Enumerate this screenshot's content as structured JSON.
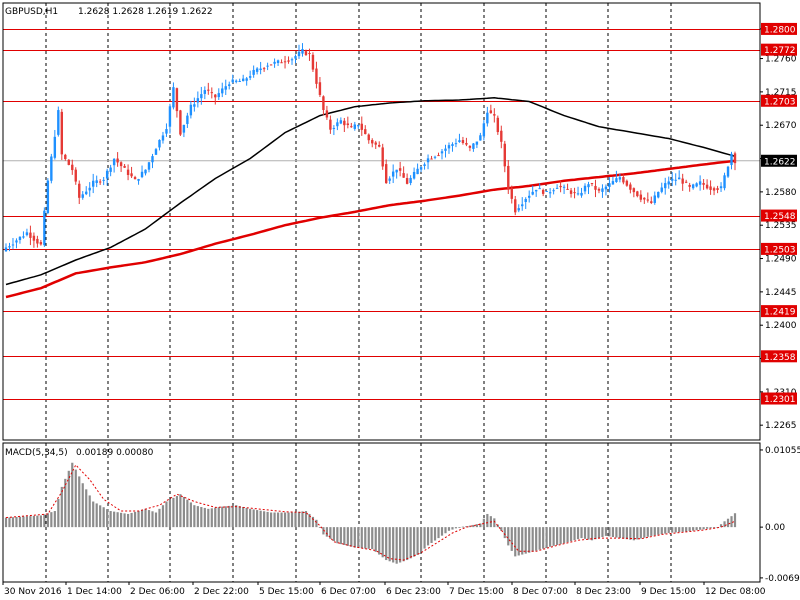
{
  "header": {
    "title": "GBPUSD,H1",
    "ohlc": "1.2628 1.2628 1.2619 1.2622"
  },
  "macd_header": {
    "title": "MACD(5,34,5)",
    "values": "0.00189 0.00080"
  },
  "colors": {
    "bull": "#1E90FF",
    "bear": "#E53935",
    "level": "#E00000",
    "ma_red": "#E00000",
    "ma_black": "#000000",
    "hist": "#8C8C8C",
    "signal": "#E00000",
    "grid": "#000000"
  },
  "chart_data": [
    {
      "type": "candlestick",
      "title": "GBPUSD,H1",
      "ylim": [
        1.2245,
        1.2835
      ],
      "price_ticks": [
        "1.2800",
        "1.2760",
        "1.2715",
        "1.2670",
        "1.2625",
        "1.2580",
        "1.2535",
        "1.2490",
        "1.2445",
        "1.2400",
        "1.2355",
        "1.2310",
        "1.2265"
      ],
      "levels": [
        "1.2800",
        "1.2772",
        "1.2703",
        "1.2548",
        "1.2503",
        "1.2419",
        "1.2358",
        "1.2301"
      ],
      "current_price": "1.2622",
      "x_labels": [
        "30 Nov 2016",
        "1 Dec 14:00",
        "2 Dec 06:00",
        "2 Dec 22:00",
        "5 Dec 15:00",
        "6 Dec 07:00",
        "6 Dec 23:00",
        "7 Dec 15:00",
        "8 Dec 07:00",
        "8 Dec 23:00",
        "9 Dec 15:00",
        "12 Dec 08:00"
      ],
      "anchors": [
        [
          0,
          1.2505
        ],
        [
          6,
          1.2525
        ],
        [
          10,
          1.2508
        ],
        [
          12,
          1.2595
        ],
        [
          15,
          1.2688
        ],
        [
          16,
          1.263
        ],
        [
          19,
          1.261
        ],
        [
          21,
          1.2572
        ],
        [
          25,
          1.2592
        ],
        [
          28,
          1.2598
        ],
        [
          31,
          1.2625
        ],
        [
          34,
          1.261
        ],
        [
          37,
          1.2595
        ],
        [
          40,
          1.261
        ],
        [
          43,
          1.264
        ],
        [
          46,
          1.2668
        ],
        [
          48,
          1.272
        ],
        [
          50,
          1.266
        ],
        [
          53,
          1.2695
        ],
        [
          57,
          1.2718
        ],
        [
          60,
          1.2708
        ],
        [
          64,
          1.2728
        ],
        [
          68,
          1.273
        ],
        [
          71,
          1.2742
        ],
        [
          75,
          1.2752
        ],
        [
          78,
          1.2755
        ],
        [
          82,
          1.276
        ],
        [
          85,
          1.277
        ],
        [
          87,
          1.2765
        ],
        [
          89,
          1.2728
        ],
        [
          91,
          1.269
        ],
        [
          93,
          1.2665
        ],
        [
          96,
          1.2676
        ],
        [
          99,
          1.2665
        ],
        [
          101,
          1.2672
        ],
        [
          104,
          1.265
        ],
        [
          107,
          1.264
        ],
        [
          109,
          1.2595
        ],
        [
          112,
          1.2612
        ],
        [
          115,
          1.2592
        ],
        [
          118,
          1.261
        ],
        [
          121,
          1.2625
        ],
        [
          124,
          1.2632
        ],
        [
          127,
          1.2642
        ],
        [
          130,
          1.265
        ],
        [
          133,
          1.2638
        ],
        [
          136,
          1.2655
        ],
        [
          138,
          1.269
        ],
        [
          140,
          1.268
        ],
        [
          142,
          1.2645
        ],
        [
          144,
          1.2585
        ],
        [
          146,
          1.2555
        ],
        [
          149,
          1.2572
        ],
        [
          152,
          1.2585
        ],
        [
          155,
          1.2578
        ],
        [
          158,
          1.2588
        ],
        [
          161,
          1.2582
        ],
        [
          164,
          1.2575
        ],
        [
          167,
          1.2592
        ],
        [
          170,
          1.258
        ],
        [
          173,
          1.259
        ],
        [
          176,
          1.26
        ],
        [
          179,
          1.2585
        ],
        [
          182,
          1.2572
        ],
        [
          185,
          1.2565
        ],
        [
          187,
          1.258
        ],
        [
          190,
          1.2595
        ],
        [
          193,
          1.2598
        ],
        [
          196,
          1.2585
        ],
        [
          199,
          1.2592
        ],
        [
          202,
          1.2585
        ],
        [
          205,
          1.2585
        ],
        [
          208,
          1.2632
        ],
        [
          209,
          1.2622
        ]
      ],
      "ma_fast": [
        [
          0,
          1.2455
        ],
        [
          10,
          1.2468
        ],
        [
          20,
          1.2488
        ],
        [
          30,
          1.2505
        ],
        [
          40,
          1.253
        ],
        [
          50,
          1.2565
        ],
        [
          60,
          1.2598
        ],
        [
          70,
          1.2625
        ],
        [
          80,
          1.266
        ],
        [
          90,
          1.2683
        ],
        [
          100,
          1.2695
        ],
        [
          110,
          1.27
        ],
        [
          120,
          1.2703
        ],
        [
          130,
          1.2704
        ],
        [
          140,
          1.2707
        ],
        [
          150,
          1.2702
        ],
        [
          160,
          1.2683
        ],
        [
          170,
          1.2668
        ],
        [
          180,
          1.266
        ],
        [
          190,
          1.2652
        ],
        [
          200,
          1.264
        ],
        [
          209,
          1.2628
        ]
      ],
      "ma_slow": [
        [
          0,
          1.2438
        ],
        [
          10,
          1.245
        ],
        [
          20,
          1.247
        ],
        [
          30,
          1.2478
        ],
        [
          40,
          1.2485
        ],
        [
          50,
          1.2496
        ],
        [
          60,
          1.251
        ],
        [
          70,
          1.2522
        ],
        [
          80,
          1.2535
        ],
        [
          90,
          1.2545
        ],
        [
          100,
          1.2553
        ],
        [
          110,
          1.2562
        ],
        [
          120,
          1.2568
        ],
        [
          130,
          1.2575
        ],
        [
          140,
          1.2583
        ],
        [
          150,
          1.2588
        ],
        [
          160,
          1.2595
        ],
        [
          170,
          1.26
        ],
        [
          180,
          1.2605
        ],
        [
          190,
          1.2611
        ],
        [
          200,
          1.2617
        ],
        [
          209,
          1.2622
        ]
      ]
    },
    {
      "type": "bar",
      "title": "MACD(5,34,5)",
      "ylim": [
        -0.0075,
        0.0115
      ],
      "y_ticks": [
        "0.01055",
        "0.00",
        "-0.00694"
      ],
      "histogram": [
        [
          0,
          0.0013
        ],
        [
          10,
          0.0016
        ],
        [
          14,
          0.0022
        ],
        [
          16,
          0.0055
        ],
        [
          19,
          0.0088
        ],
        [
          22,
          0.006
        ],
        [
          25,
          0.0035
        ],
        [
          30,
          0.0022
        ],
        [
          35,
          0.0018
        ],
        [
          40,
          0.0025
        ],
        [
          43,
          0.002
        ],
        [
          46,
          0.0035
        ],
        [
          50,
          0.0045
        ],
        [
          54,
          0.003
        ],
        [
          58,
          0.0025
        ],
        [
          62,
          0.0028
        ],
        [
          66,
          0.003
        ],
        [
          70,
          0.0025
        ],
        [
          76,
          0.002
        ],
        [
          82,
          0.002
        ],
        [
          86,
          0.0022
        ],
        [
          89,
          0.001
        ],
        [
          91,
          -0.001
        ],
        [
          95,
          -0.0022
        ],
        [
          100,
          -0.0028
        ],
        [
          105,
          -0.003
        ],
        [
          109,
          -0.0045
        ],
        [
          112,
          -0.005
        ],
        [
          115,
          -0.0045
        ],
        [
          118,
          -0.0038
        ],
        [
          121,
          -0.0025
        ],
        [
          124,
          -0.0015
        ],
        [
          127,
          -0.0005
        ],
        [
          130,
          0.0
        ],
        [
          133,
          0.0002
        ],
        [
          136,
          0.0005
        ],
        [
          138,
          0.0018
        ],
        [
          140,
          0.0012
        ],
        [
          142,
          -0.0005
        ],
        [
          144,
          -0.0025
        ],
        [
          146,
          -0.004
        ],
        [
          150,
          -0.0035
        ],
        [
          155,
          -0.0028
        ],
        [
          160,
          -0.0022
        ],
        [
          165,
          -0.0015
        ],
        [
          168,
          -0.0018
        ],
        [
          172,
          -0.0012
        ],
        [
          176,
          -0.0015
        ],
        [
          180,
          -0.0018
        ],
        [
          185,
          -0.0012
        ],
        [
          190,
          -0.0008
        ],
        [
          195,
          -0.0006
        ],
        [
          200,
          -0.0003
        ],
        [
          204,
          0.0
        ],
        [
          206,
          0.0008
        ],
        [
          208,
          0.0015
        ],
        [
          209,
          0.0019
        ]
      ],
      "signal": [
        [
          0,
          0.0013
        ],
        [
          12,
          0.0018
        ],
        [
          16,
          0.0048
        ],
        [
          20,
          0.0085
        ],
        [
          24,
          0.0065
        ],
        [
          28,
          0.0038
        ],
        [
          33,
          0.0022
        ],
        [
          38,
          0.0022
        ],
        [
          44,
          0.003
        ],
        [
          49,
          0.0045
        ],
        [
          54,
          0.0035
        ],
        [
          60,
          0.0027
        ],
        [
          66,
          0.0028
        ],
        [
          72,
          0.0025
        ],
        [
          80,
          0.0021
        ],
        [
          86,
          0.002
        ],
        [
          90,
          0.0002
        ],
        [
          94,
          -0.002
        ],
        [
          100,
          -0.0027
        ],
        [
          106,
          -0.0032
        ],
        [
          110,
          -0.0043
        ],
        [
          114,
          -0.0045
        ],
        [
          119,
          -0.0035
        ],
        [
          124,
          -0.002
        ],
        [
          128,
          -0.0008
        ],
        [
          132,
          0.0
        ],
        [
          136,
          0.0004
        ],
        [
          140,
          0.0008
        ],
        [
          143,
          -0.001
        ],
        [
          147,
          -0.0033
        ],
        [
          152,
          -0.0033
        ],
        [
          158,
          -0.0025
        ],
        [
          164,
          -0.0018
        ],
        [
          170,
          -0.0015
        ],
        [
          176,
          -0.0015
        ],
        [
          182,
          -0.0016
        ],
        [
          188,
          -0.001
        ],
        [
          194,
          -0.0007
        ],
        [
          200,
          -0.0004
        ],
        [
          205,
          0.0
        ],
        [
          209,
          0.0008
        ]
      ]
    }
  ]
}
